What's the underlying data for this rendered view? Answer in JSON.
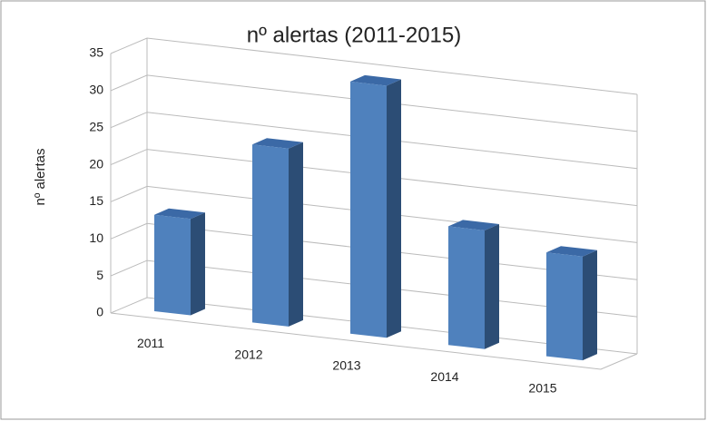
{
  "chart_data": {
    "type": "bar3d",
    "title": "nº alertas (2011-2015)",
    "y_label": "nº alertas",
    "categories": [
      "2011",
      "2012",
      "2013",
      "2014",
      "2015"
    ],
    "values": [
      13,
      24,
      34,
      16,
      14
    ],
    "color": "#4f81bd",
    "side_color": "#2c4d75",
    "top_color": "#3b69a6",
    "ylim": [
      0,
      35
    ],
    "yticks": [
      0,
      5,
      10,
      15,
      20,
      25,
      30,
      35
    ],
    "grid": true
  }
}
